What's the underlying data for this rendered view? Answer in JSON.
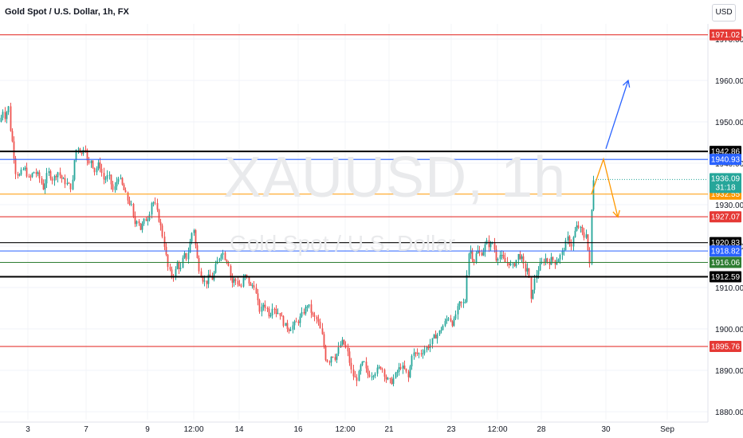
{
  "header": {
    "title": "Gold Spot / U.S. Dollar, 1h, FX",
    "currency": "USD"
  },
  "watermark": {
    "symbol": "XAUUSD, 1h",
    "name": "Gold Spot / U.S. Dollar"
  },
  "colors": {
    "up": "#26a69a",
    "down": "#ef5350",
    "red_line": "#e53935",
    "black_line": "#000000",
    "blue_line": "#2962ff",
    "orange_line": "#ff9800",
    "green_line": "#2e7d32",
    "arrow_up": "#2962ff",
    "arrow_down": "#ff9800"
  },
  "chart_data": {
    "type": "candlestick",
    "symbol": "XAUUSD",
    "timeframe": "1h",
    "ylim": [
      1878,
      1973
    ],
    "y_ticks": [
      1880,
      1890,
      1900,
      1910,
      1920,
      1930,
      1940,
      1950,
      1960,
      1970
    ],
    "y_tick_labels": [
      "1880.00",
      "1890.00",
      "1900.00",
      "1910.00",
      "1920.00",
      "1930.00",
      "1940.00",
      "1950.00",
      "1960.00",
      "1970.00"
    ],
    "x_tick_labels": [
      "3",
      "7",
      "9",
      "12:00",
      "14",
      "16",
      "12:00",
      "21",
      "23",
      "12:00",
      "28",
      "30",
      "Sep"
    ],
    "price_path": [
      [
        0,
        1950
      ],
      [
        3,
        1953
      ],
      [
        6,
        1951
      ],
      [
        10,
        1954
      ],
      [
        13,
        1947
      ],
      [
        16,
        1944
      ],
      [
        19,
        1938
      ],
      [
        24,
        1937
      ],
      [
        30,
        1939
      ],
      [
        36,
        1936
      ],
      [
        42,
        1938
      ],
      [
        48,
        1937
      ],
      [
        54,
        1934
      ],
      [
        60,
        1938
      ],
      [
        66,
        1936
      ],
      [
        72,
        1938
      ],
      [
        78,
        1936
      ],
      [
        84,
        1935
      ],
      [
        90,
        1934
      ],
      [
        94,
        1943
      ],
      [
        98,
        1944
      ],
      [
        102,
        1942
      ],
      [
        106,
        1945
      ],
      [
        110,
        1939
      ],
      [
        114,
        1941
      ],
      [
        118,
        1938
      ],
      [
        124,
        1940
      ],
      [
        130,
        1936
      ],
      [
        136,
        1937
      ],
      [
        142,
        1933
      ],
      [
        148,
        1937
      ],
      [
        154,
        1934
      ],
      [
        160,
        1931
      ],
      [
        164,
        1930
      ],
      [
        168,
        1925
      ],
      [
        172,
        1927
      ],
      [
        176,
        1924
      ],
      [
        180,
        1926
      ],
      [
        186,
        1927
      ],
      [
        190,
        1931
      ],
      [
        194,
        1930
      ],
      [
        198,
        1927
      ],
      [
        202,
        1924
      ],
      [
        206,
        1920
      ],
      [
        210,
        1915
      ],
      [
        214,
        1913
      ],
      [
        218,
        1913
      ],
      [
        222,
        1916
      ],
      [
        226,
        1914
      ],
      [
        230,
        1918
      ],
      [
        234,
        1917
      ],
      [
        238,
        1921
      ],
      [
        242,
        1925
      ],
      [
        246,
        1918
      ],
      [
        250,
        1914
      ],
      [
        254,
        1912
      ],
      [
        258,
        1911
      ],
      [
        262,
        1913
      ],
      [
        266,
        1912
      ],
      [
        270,
        1915
      ],
      [
        274,
        1917
      ],
      [
        278,
        1919
      ],
      [
        282,
        1917
      ],
      [
        286,
        1916
      ],
      [
        290,
        1911
      ],
      [
        294,
        1912
      ],
      [
        298,
        1911
      ],
      [
        302,
        1910
      ],
      [
        306,
        1913
      ],
      [
        310,
        1912
      ],
      [
        314,
        1910
      ],
      [
        318,
        1911
      ],
      [
        322,
        1907
      ],
      [
        326,
        1904
      ],
      [
        330,
        1906
      ],
      [
        334,
        1905
      ],
      [
        338,
        1903
      ],
      [
        342,
        1906
      ],
      [
        346,
        1904
      ],
      [
        350,
        1904
      ],
      [
        356,
        1901
      ],
      [
        362,
        1900
      ],
      [
        368,
        1901
      ],
      [
        374,
        1902
      ],
      [
        380,
        1904
      ],
      [
        386,
        1906
      ],
      [
        392,
        1903
      ],
      [
        398,
        1902
      ],
      [
        404,
        1898
      ],
      [
        408,
        1893
      ],
      [
        412,
        1892
      ],
      [
        416,
        1894
      ],
      [
        420,
        1893
      ],
      [
        424,
        1895
      ],
      [
        428,
        1897
      ],
      [
        432,
        1896
      ],
      [
        436,
        1894
      ],
      [
        440,
        1890
      ],
      [
        444,
        1888
      ],
      [
        448,
        1888
      ],
      [
        452,
        1891
      ],
      [
        456,
        1892
      ],
      [
        460,
        1889
      ],
      [
        466,
        1889
      ],
      [
        472,
        1890
      ],
      [
        478,
        1891
      ],
      [
        484,
        1888
      ],
      [
        490,
        1887
      ],
      [
        496,
        1889
      ],
      [
        502,
        1891
      ],
      [
        508,
        1890
      ],
      [
        512,
        1888
      ],
      [
        516,
        1894
      ],
      [
        520,
        1894
      ],
      [
        526,
        1894
      ],
      [
        532,
        1895
      ],
      [
        538,
        1896
      ],
      [
        544,
        1898
      ],
      [
        550,
        1899
      ],
      [
        556,
        1901
      ],
      [
        562,
        1903
      ],
      [
        568,
        1901
      ],
      [
        572,
        1904
      ],
      [
        576,
        1906
      ],
      [
        580,
        1906
      ],
      [
        584,
        1907
      ],
      [
        586,
        1918
      ],
      [
        590,
        1919
      ],
      [
        594,
        1916
      ],
      [
        598,
        1919
      ],
      [
        602,
        1918
      ],
      [
        606,
        1919
      ],
      [
        610,
        1921
      ],
      [
        614,
        1920
      ],
      [
        618,
        1921
      ],
      [
        622,
        1917
      ],
      [
        626,
        1918
      ],
      [
        630,
        1917
      ],
      [
        634,
        1916
      ],
      [
        638,
        1916
      ],
      [
        642,
        1915
      ],
      [
        646,
        1916
      ],
      [
        650,
        1918
      ],
      [
        654,
        1917
      ],
      [
        658,
        1914
      ],
      [
        662,
        1915
      ],
      [
        666,
        1906
      ],
      [
        668,
        1910
      ],
      [
        672,
        1913
      ],
      [
        676,
        1915
      ],
      [
        680,
        1916
      ],
      [
        684,
        1917
      ],
      [
        688,
        1916
      ],
      [
        692,
        1917
      ],
      [
        696,
        1916
      ],
      [
        700,
        1917
      ],
      [
        704,
        1918
      ],
      [
        708,
        1920
      ],
      [
        712,
        1922
      ],
      [
        716,
        1920
      ],
      [
        720,
        1923
      ],
      [
        724,
        1925
      ],
      [
        728,
        1924
      ],
      [
        732,
        1922
      ],
      [
        736,
        1924
      ],
      [
        738,
        1914
      ],
      [
        740,
        1916
      ],
      [
        742,
        1932
      ],
      [
        744,
        1936.09
      ]
    ],
    "horizontal_levels": [
      {
        "price": 1971.02,
        "label": "1971.02",
        "color": "red_line",
        "style": "solid"
      },
      {
        "price": 1942.86,
        "label": "1942.86",
        "color": "black_line",
        "style": "bold"
      },
      {
        "price": 1940.93,
        "label": "1940.93",
        "color": "blue_line",
        "style": "solid"
      },
      {
        "price": 1932.55,
        "label": "1932.55",
        "color": "orange_line",
        "style": "solid"
      },
      {
        "price": 1927.07,
        "label": "1927.07",
        "color": "red_line",
        "style": "solid"
      },
      {
        "price": 1920.83,
        "label": "1920.83",
        "color": "black_line",
        "style": "solid"
      },
      {
        "price": 1918.82,
        "label": "1918.82",
        "color": "blue_line",
        "style": "solid"
      },
      {
        "price": 1916.06,
        "label": "1916.06",
        "color": "green_line",
        "style": "solid"
      },
      {
        "price": 1912.59,
        "label": "1912.59",
        "color": "black_line",
        "style": "bold"
      },
      {
        "price": 1895.76,
        "label": "1895.76",
        "color": "red_line",
        "style": "solid"
      }
    ],
    "current_price": {
      "price": 1936.09,
      "label": "1936.09",
      "countdown": "31:18"
    },
    "arrows": [
      {
        "color": "arrow_up",
        "points": [
          [
            760,
            1943.5
          ],
          [
            788,
            1960
          ]
        ]
      },
      {
        "color": "arrow_down",
        "points": [
          [
            742,
            1932.6
          ],
          [
            757,
            1941
          ],
          [
            775,
            1927
          ]
        ]
      }
    ]
  }
}
